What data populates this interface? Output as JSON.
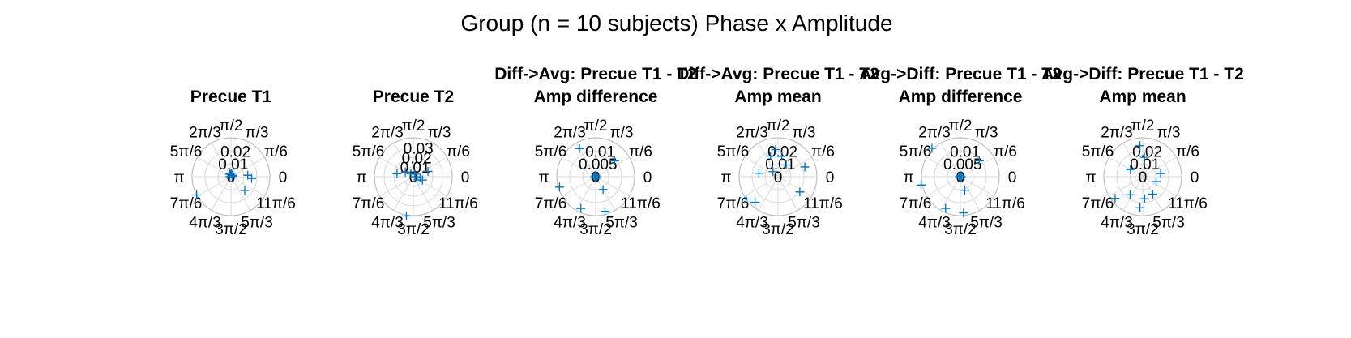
{
  "figure": {
    "title": "Group (n = 10 subjects) Phase x Amplitude"
  },
  "colors": {
    "marker": "#0072BD",
    "grid": "#D9D9D9",
    "axis": "#BFBFBF",
    "text": "#000000"
  },
  "angle_labels": [
    "0",
    "π/6",
    "π/3",
    "π/2",
    "2π/3",
    "5π/6",
    "π",
    "7π/6",
    "4π/3",
    "3π/2",
    "5π/3",
    "11π/6"
  ],
  "chart_data": [
    {
      "type": "scatter",
      "coordinate_system": "polar",
      "title": [
        "",
        "Precue T1"
      ],
      "rlim": [
        0,
        0.03
      ],
      "rticks": [
        "0",
        "0.01",
        "0.02"
      ],
      "marker": "+",
      "points": [
        {
          "theta_deg": 15,
          "r": 0.001
        },
        {
          "theta_deg": 45,
          "r": 0.0015
        },
        {
          "theta_deg": 80,
          "r": 0.0028
        },
        {
          "theta_deg": 100,
          "r": 0.0025
        },
        {
          "theta_deg": 120,
          "r": 0.0022
        },
        {
          "theta_deg": 5,
          "r": 0.013
        },
        {
          "theta_deg": -5,
          "r": 0.016
        },
        {
          "theta_deg": 180,
          "r": 0.001
        },
        {
          "theta_deg": -45,
          "r": 0.015
        },
        {
          "theta_deg": 208,
          "r": 0.03
        }
      ]
    },
    {
      "type": "scatter",
      "coordinate_system": "polar",
      "title": [
        "",
        "Precue T2"
      ],
      "rlim": [
        0,
        0.04
      ],
      "rticks": [
        "0",
        "0.01",
        "0.02",
        "0.03"
      ],
      "marker": "+",
      "points": [
        {
          "theta_deg": 20,
          "r": 0.016
        },
        {
          "theta_deg": -20,
          "r": 0.01
        },
        {
          "theta_deg": -10,
          "r": 0.007
        },
        {
          "theta_deg": 170,
          "r": 0.017
        },
        {
          "theta_deg": 150,
          "r": 0.0095
        },
        {
          "theta_deg": 128,
          "r": 0.004
        },
        {
          "theta_deg": 60,
          "r": 0.003
        },
        {
          "theta_deg": 260,
          "r": 0.041
        },
        {
          "theta_deg": -40,
          "r": 0.005
        },
        {
          "theta_deg": 0,
          "r": 0.002
        }
      ]
    },
    {
      "type": "scatter",
      "coordinate_system": "polar",
      "title": [
        "Diff->Avg: Precue T1 - T2",
        "Amp difference"
      ],
      "rlim": [
        0,
        0.015
      ],
      "rticks": [
        "0",
        "0.005",
        "0.01"
      ],
      "marker": "+",
      "points": [
        {
          "theta_deg": 40,
          "r": 0.0095
        },
        {
          "theta_deg": 120,
          "r": 0.0125
        },
        {
          "theta_deg": 196,
          "r": 0.0145
        },
        {
          "theta_deg": 245,
          "r": 0.0135
        },
        {
          "theta_deg": 285,
          "r": 0.0138
        },
        {
          "theta_deg": -60,
          "r": 0.0057
        },
        {
          "theta_deg": 90,
          "r": 0.0005
        },
        {
          "theta_deg": 180,
          "r": 0.0004
        },
        {
          "theta_deg": 0,
          "r": 0.0005
        },
        {
          "theta_deg": 270,
          "r": 0.0006
        }
      ]
    },
    {
      "type": "scatter",
      "coordinate_system": "polar",
      "title": [
        "Diff->Avg: Precue T1 - T2",
        "Amp mean"
      ],
      "rlim": [
        0,
        0.03
      ],
      "rticks": [
        "0",
        "0.01",
        "0.02"
      ],
      "marker": "+",
      "points": [
        {
          "theta_deg": 95,
          "r": 0.021
        },
        {
          "theta_deg": 110,
          "r": 0.017
        },
        {
          "theta_deg": 80,
          "r": 0.016
        },
        {
          "theta_deg": 20,
          "r": 0.022
        },
        {
          "theta_deg": 170,
          "r": 0.015
        },
        {
          "theta_deg": 135,
          "r": 0.0055
        },
        {
          "theta_deg": 215,
          "r": 0.03
        },
        {
          "theta_deg": 228,
          "r": 0.0265
        },
        {
          "theta_deg": -35,
          "r": 0.0205
        },
        {
          "theta_deg": 55,
          "r": 0.011
        }
      ]
    },
    {
      "type": "scatter",
      "coordinate_system": "polar",
      "title": [
        "Avg->Diff: Precue T1 - T2",
        "Amp difference"
      ],
      "rlim": [
        0,
        0.015
      ],
      "rticks": [
        "0",
        "0.005",
        "0.01"
      ],
      "marker": "+",
      "points": [
        {
          "theta_deg": 135,
          "r": 0.0155
        },
        {
          "theta_deg": 192,
          "r": 0.0155
        },
        {
          "theta_deg": 245,
          "r": 0.0135
        },
        {
          "theta_deg": 275,
          "r": 0.014
        },
        {
          "theta_deg": 40,
          "r": 0.0095
        },
        {
          "theta_deg": -72,
          "r": 0.0055
        },
        {
          "theta_deg": 90,
          "r": 0.0004
        },
        {
          "theta_deg": 180,
          "r": 0.0004
        },
        {
          "theta_deg": 0,
          "r": 0.0004
        },
        {
          "theta_deg": 270,
          "r": 0.0005
        }
      ]
    },
    {
      "type": "scatter",
      "coordinate_system": "polar",
      "title": [
        "Avg->Diff: Precue T1 - T2",
        "Amp mean"
      ],
      "rlim": [
        0,
        0.03
      ],
      "rticks": [
        "0",
        "0.01",
        "0.02"
      ],
      "marker": "+",
      "points": [
        {
          "theta_deg": 95,
          "r": 0.024
        },
        {
          "theta_deg": 85,
          "r": 0.015
        },
        {
          "theta_deg": 10,
          "r": 0.014
        },
        {
          "theta_deg": 150,
          "r": 0.011
        },
        {
          "theta_deg": 265,
          "r": 0.024
        },
        {
          "theta_deg": 235,
          "r": 0.017
        },
        {
          "theta_deg": 218,
          "r": 0.027
        },
        {
          "theta_deg": 275,
          "r": 0.017
        },
        {
          "theta_deg": -60,
          "r": 0.0155
        },
        {
          "theta_deg": -20,
          "r": 0.011
        }
      ]
    }
  ]
}
